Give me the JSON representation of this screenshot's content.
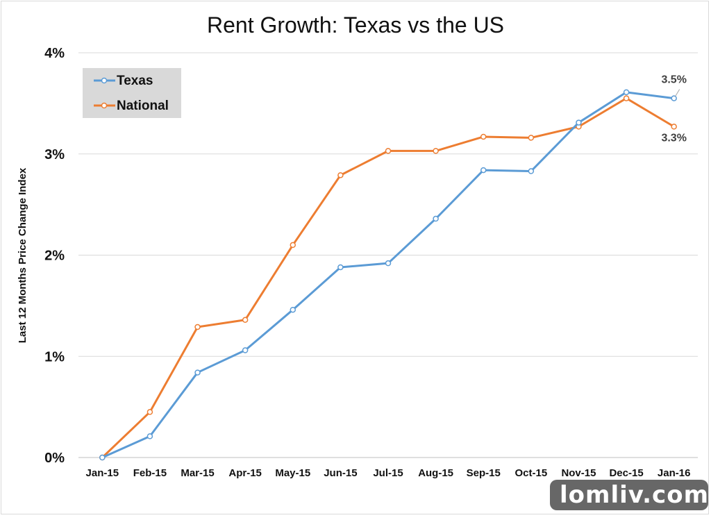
{
  "chart_data": {
    "type": "line",
    "title": "Rent Growth: Texas vs the US",
    "ylabel": "Last 12 Months Price Change Index",
    "xlabel": "",
    "categories": [
      "Jan-15",
      "Feb-15",
      "Mar-15",
      "Apr-15",
      "May-15",
      "Jun-15",
      "Jul-15",
      "Aug-15",
      "Sep-15",
      "Oct-15",
      "Nov-15",
      "Dec-15",
      "Jan-16"
    ],
    "ylim": [
      0,
      4
    ],
    "yticks": [
      0,
      1,
      2,
      3,
      4
    ],
    "ytick_labels": [
      "0%",
      "1%",
      "2%",
      "3%",
      "4%"
    ],
    "grid": true,
    "legend": {
      "position": "top-left"
    },
    "series": [
      {
        "name": "Texas",
        "color": "#5B9BD5",
        "values": [
          0.0,
          0.21,
          0.84,
          1.06,
          1.46,
          1.88,
          1.92,
          2.36,
          2.84,
          2.83,
          3.31,
          3.61,
          3.55
        ]
      },
      {
        "name": "National",
        "color": "#ED7D31",
        "values": [
          0.0,
          0.45,
          1.29,
          1.36,
          2.1,
          2.79,
          3.03,
          3.03,
          3.17,
          3.16,
          3.27,
          3.55,
          3.27
        ]
      }
    ],
    "annotations": [
      {
        "series": "Texas",
        "index": 12,
        "text": "3.5%"
      },
      {
        "series": "National",
        "index": 12,
        "text": "3.3%"
      }
    ]
  },
  "watermark": {
    "text": "lomliv.com"
  }
}
